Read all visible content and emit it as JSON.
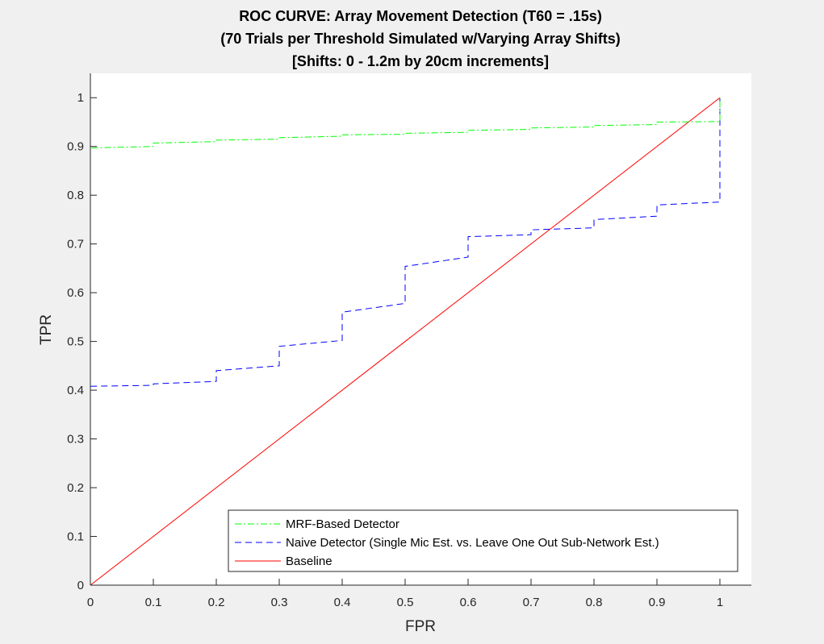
{
  "chart_data": {
    "type": "line",
    "title_lines": [
      "ROC CURVE: Array Movement Detection (T60 = .15s)",
      "(70 Trials per Threshold Simulated w/Varying Array Shifts)",
      "[Shifts: 0 - 1.2m by 20cm increments]"
    ],
    "xlabel": "FPR",
    "ylabel": "TPR",
    "xlim": [
      0,
      1.05
    ],
    "ylim": [
      0,
      1.05
    ],
    "xticks": [
      0,
      0.1,
      0.2,
      0.3,
      0.4,
      0.5,
      0.6,
      0.7,
      0.8,
      0.9,
      1
    ],
    "xtick_labels": [
      "0",
      "0.1",
      "0.2",
      "0.3",
      "0.4",
      "0.5",
      "0.6",
      "0.7",
      "0.8",
      "0.9",
      "1"
    ],
    "yticks": [
      0,
      0.1,
      0.2,
      0.3,
      0.4,
      0.5,
      0.6,
      0.7,
      0.8,
      0.9,
      1
    ],
    "ytick_labels": [
      "0",
      "0.1",
      "0.2",
      "0.3",
      "0.4",
      "0.5",
      "0.6",
      "0.7",
      "0.8",
      "0.9",
      "1"
    ],
    "grid": false,
    "legend_position": "bottom-right",
    "series": [
      {
        "name": "MRF-Based Detector",
        "color": "#00ff00",
        "line_style": "dash-dot",
        "x": [
          0,
          0,
          0.1,
          0.1,
          0.2,
          0.2,
          0.3,
          0.3,
          0.4,
          0.4,
          0.5,
          0.5,
          0.6,
          0.6,
          0.7,
          0.7,
          0.8,
          0.8,
          0.9,
          0.9,
          1,
          1
        ],
        "y": [
          0,
          0.897,
          0.9,
          0.907,
          0.91,
          0.913,
          0.915,
          0.918,
          0.921,
          0.924,
          0.925,
          0.927,
          0.929,
          0.933,
          0.935,
          0.938,
          0.94,
          0.943,
          0.945,
          0.95,
          0.951,
          1
        ]
      },
      {
        "name": "Naive Detector (Single Mic Est. vs. Leave One Out Sub-Network Est.)",
        "color": "#0000ff",
        "line_style": "dashed",
        "x": [
          0,
          0,
          0.1,
          0.1,
          0.2,
          0.2,
          0.3,
          0.3,
          0.4,
          0.4,
          0.5,
          0.5,
          0.6,
          0.6,
          0.7,
          0.7,
          0.8,
          0.8,
          0.9,
          0.9,
          1,
          1
        ],
        "y": [
          0,
          0.408,
          0.41,
          0.413,
          0.418,
          0.44,
          0.45,
          0.49,
          0.502,
          0.56,
          0.578,
          0.654,
          0.673,
          0.715,
          0.719,
          0.729,
          0.733,
          0.75,
          0.757,
          0.78,
          0.786,
          1
        ]
      },
      {
        "name": "Baseline",
        "color": "#ff0000",
        "line_style": "solid",
        "x": [
          0,
          1
        ],
        "y": [
          0,
          1
        ]
      }
    ]
  }
}
